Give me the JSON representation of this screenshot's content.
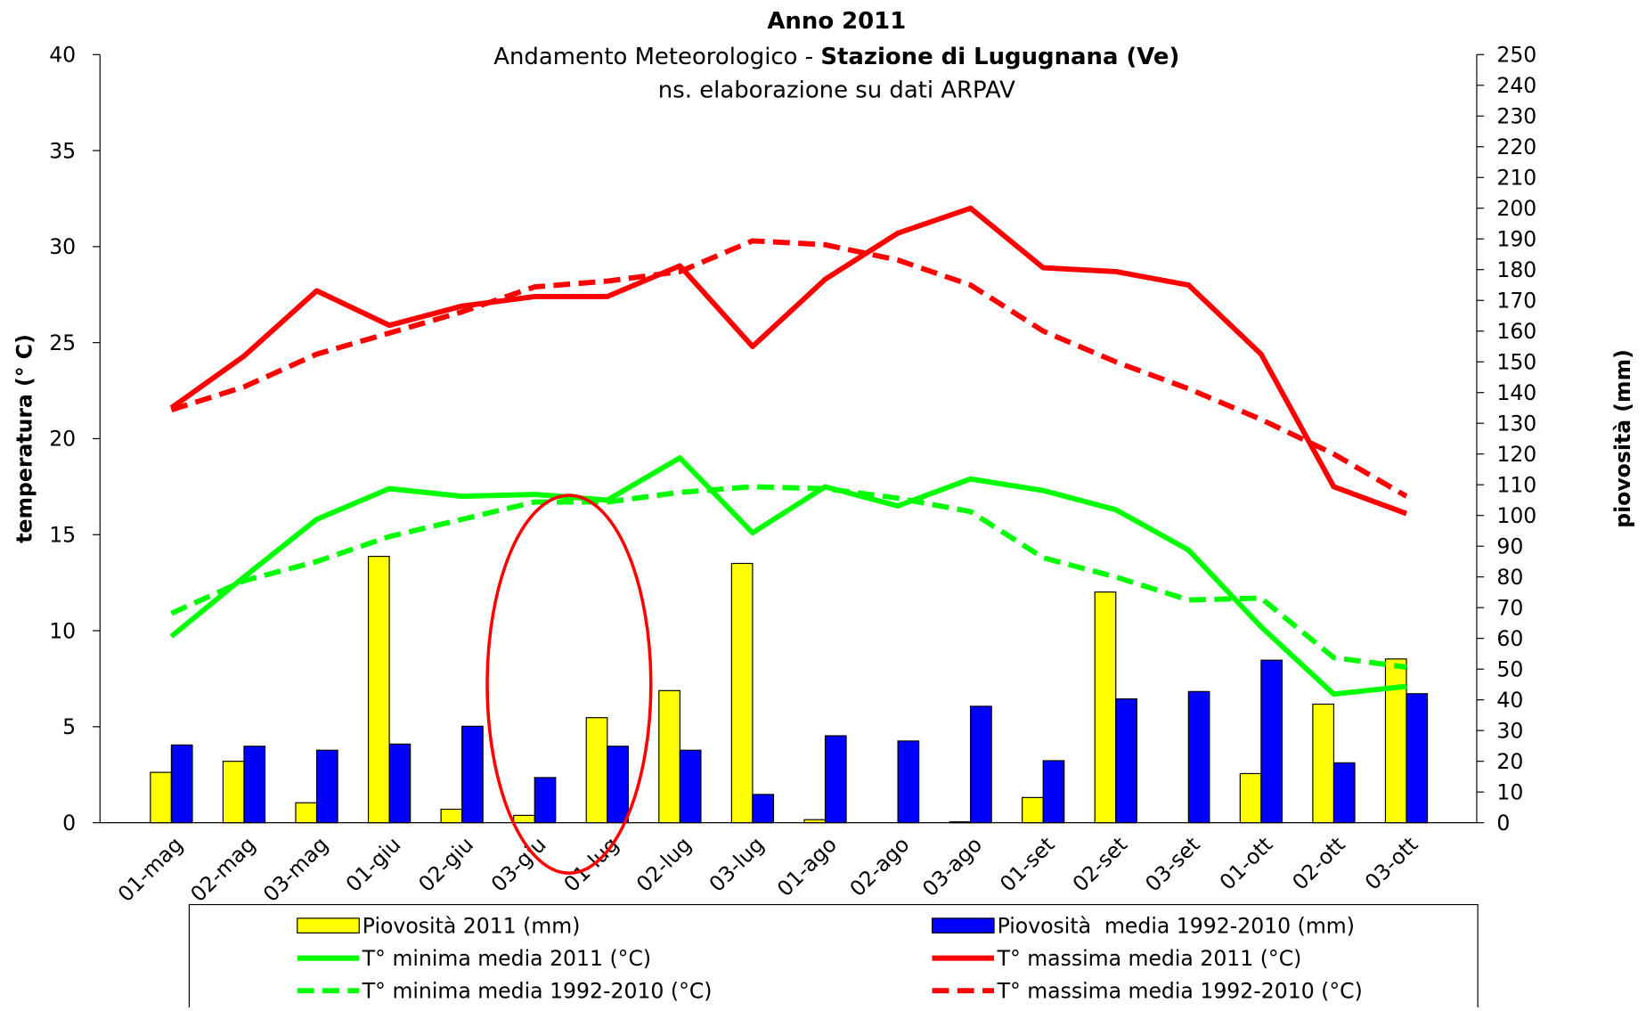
{
  "chart_data": {
    "type": "combo",
    "title": "Anno 2011",
    "subtitle": "Andamento Meteorologico  - ",
    "station": "Stazione di Lugugnana (Ve)",
    "note": "ns. elaborazione su dati ARPAV",
    "y_label": "temperatura (° C)",
    "y2_label": "piovosità (mm)",
    "categories": [
      "01-mag",
      "02-mag",
      "03-mag",
      "01-giu",
      "02-giu",
      "03-giu",
      "01-lug",
      "02-lug",
      "03-lug",
      "01-ago",
      "02-ago",
      "03-ago",
      "01-set",
      "02-set",
      "03-set",
      "01-ott",
      "02-ott",
      "03-ott"
    ],
    "ylim": [
      0,
      40
    ],
    "yticks": [
      0,
      5,
      10,
      15,
      20,
      25,
      30,
      35,
      40
    ],
    "y2lim": [
      0,
      250
    ],
    "y2ticks": [
      0,
      10,
      20,
      30,
      40,
      50,
      60,
      70,
      80,
      90,
      100,
      110,
      120,
      130,
      140,
      150,
      160,
      170,
      180,
      190,
      200,
      210,
      220,
      230,
      240,
      250
    ],
    "series": [
      {
        "name": "Piovosità 2011 (mm)",
        "type": "bar",
        "axis": "y2",
        "color": "#ffff00",
        "values": [
          16.4,
          20,
          6.5,
          86.7,
          4.4,
          2.4,
          34.2,
          43,
          84.4,
          1,
          0,
          0.3,
          8.2,
          75.1,
          0,
          16,
          38.6,
          53.3
        ]
      },
      {
        "name": "Piovosità  media 1992-2010 (mm)",
        "type": "bar",
        "axis": "y2",
        "color": "#0000ff",
        "values": [
          25.3,
          24.9,
          23.6,
          25.6,
          31.4,
          14.7,
          24.9,
          23.6,
          9.2,
          28.3,
          26.6,
          37.9,
          20.2,
          40.3,
          42.7,
          52.9,
          19.5,
          42
        ]
      },
      {
        "name": "T° minima media 2011 (°C)",
        "type": "line",
        "color": "#00ff00",
        "dashed": false,
        "values": [
          9.7,
          12.8,
          15.8,
          17.4,
          17.0,
          17.1,
          16.8,
          19.0,
          15.1,
          17.5,
          16.5,
          17.9,
          17.3,
          16.3,
          14.2,
          10.2,
          6.7,
          7.1
        ]
      },
      {
        "name": "T° massima media 2011 (°C)",
        "type": "line",
        "color": "#ff0000",
        "dashed": false,
        "values": [
          21.6,
          24.3,
          27.7,
          25.9,
          26.9,
          27.4,
          27.4,
          29.0,
          24.8,
          28.3,
          30.7,
          32.0,
          28.9,
          28.7,
          28.0,
          24.4,
          17.5,
          16.1
        ]
      },
      {
        "name": "T° minima media 1992-2010 (°C)",
        "type": "line",
        "color": "#00ff00",
        "dashed": true,
        "values": [
          10.9,
          12.6,
          13.6,
          14.9,
          15.8,
          16.7,
          16.7,
          17.2,
          17.5,
          17.4,
          16.9,
          16.2,
          13.8,
          12.8,
          11.6,
          11.7,
          8.6,
          8.1
        ]
      },
      {
        "name": "T° massima media 1992-2010 (°C)",
        "type": "line",
        "color": "#ff0000",
        "dashed": true,
        "values": [
          21.5,
          22.7,
          24.4,
          25.5,
          26.6,
          27.9,
          28.2,
          28.7,
          30.3,
          30.1,
          29.3,
          28.0,
          25.6,
          24.0,
          22.6,
          21.0,
          19.2,
          17.0
        ]
      }
    ]
  }
}
